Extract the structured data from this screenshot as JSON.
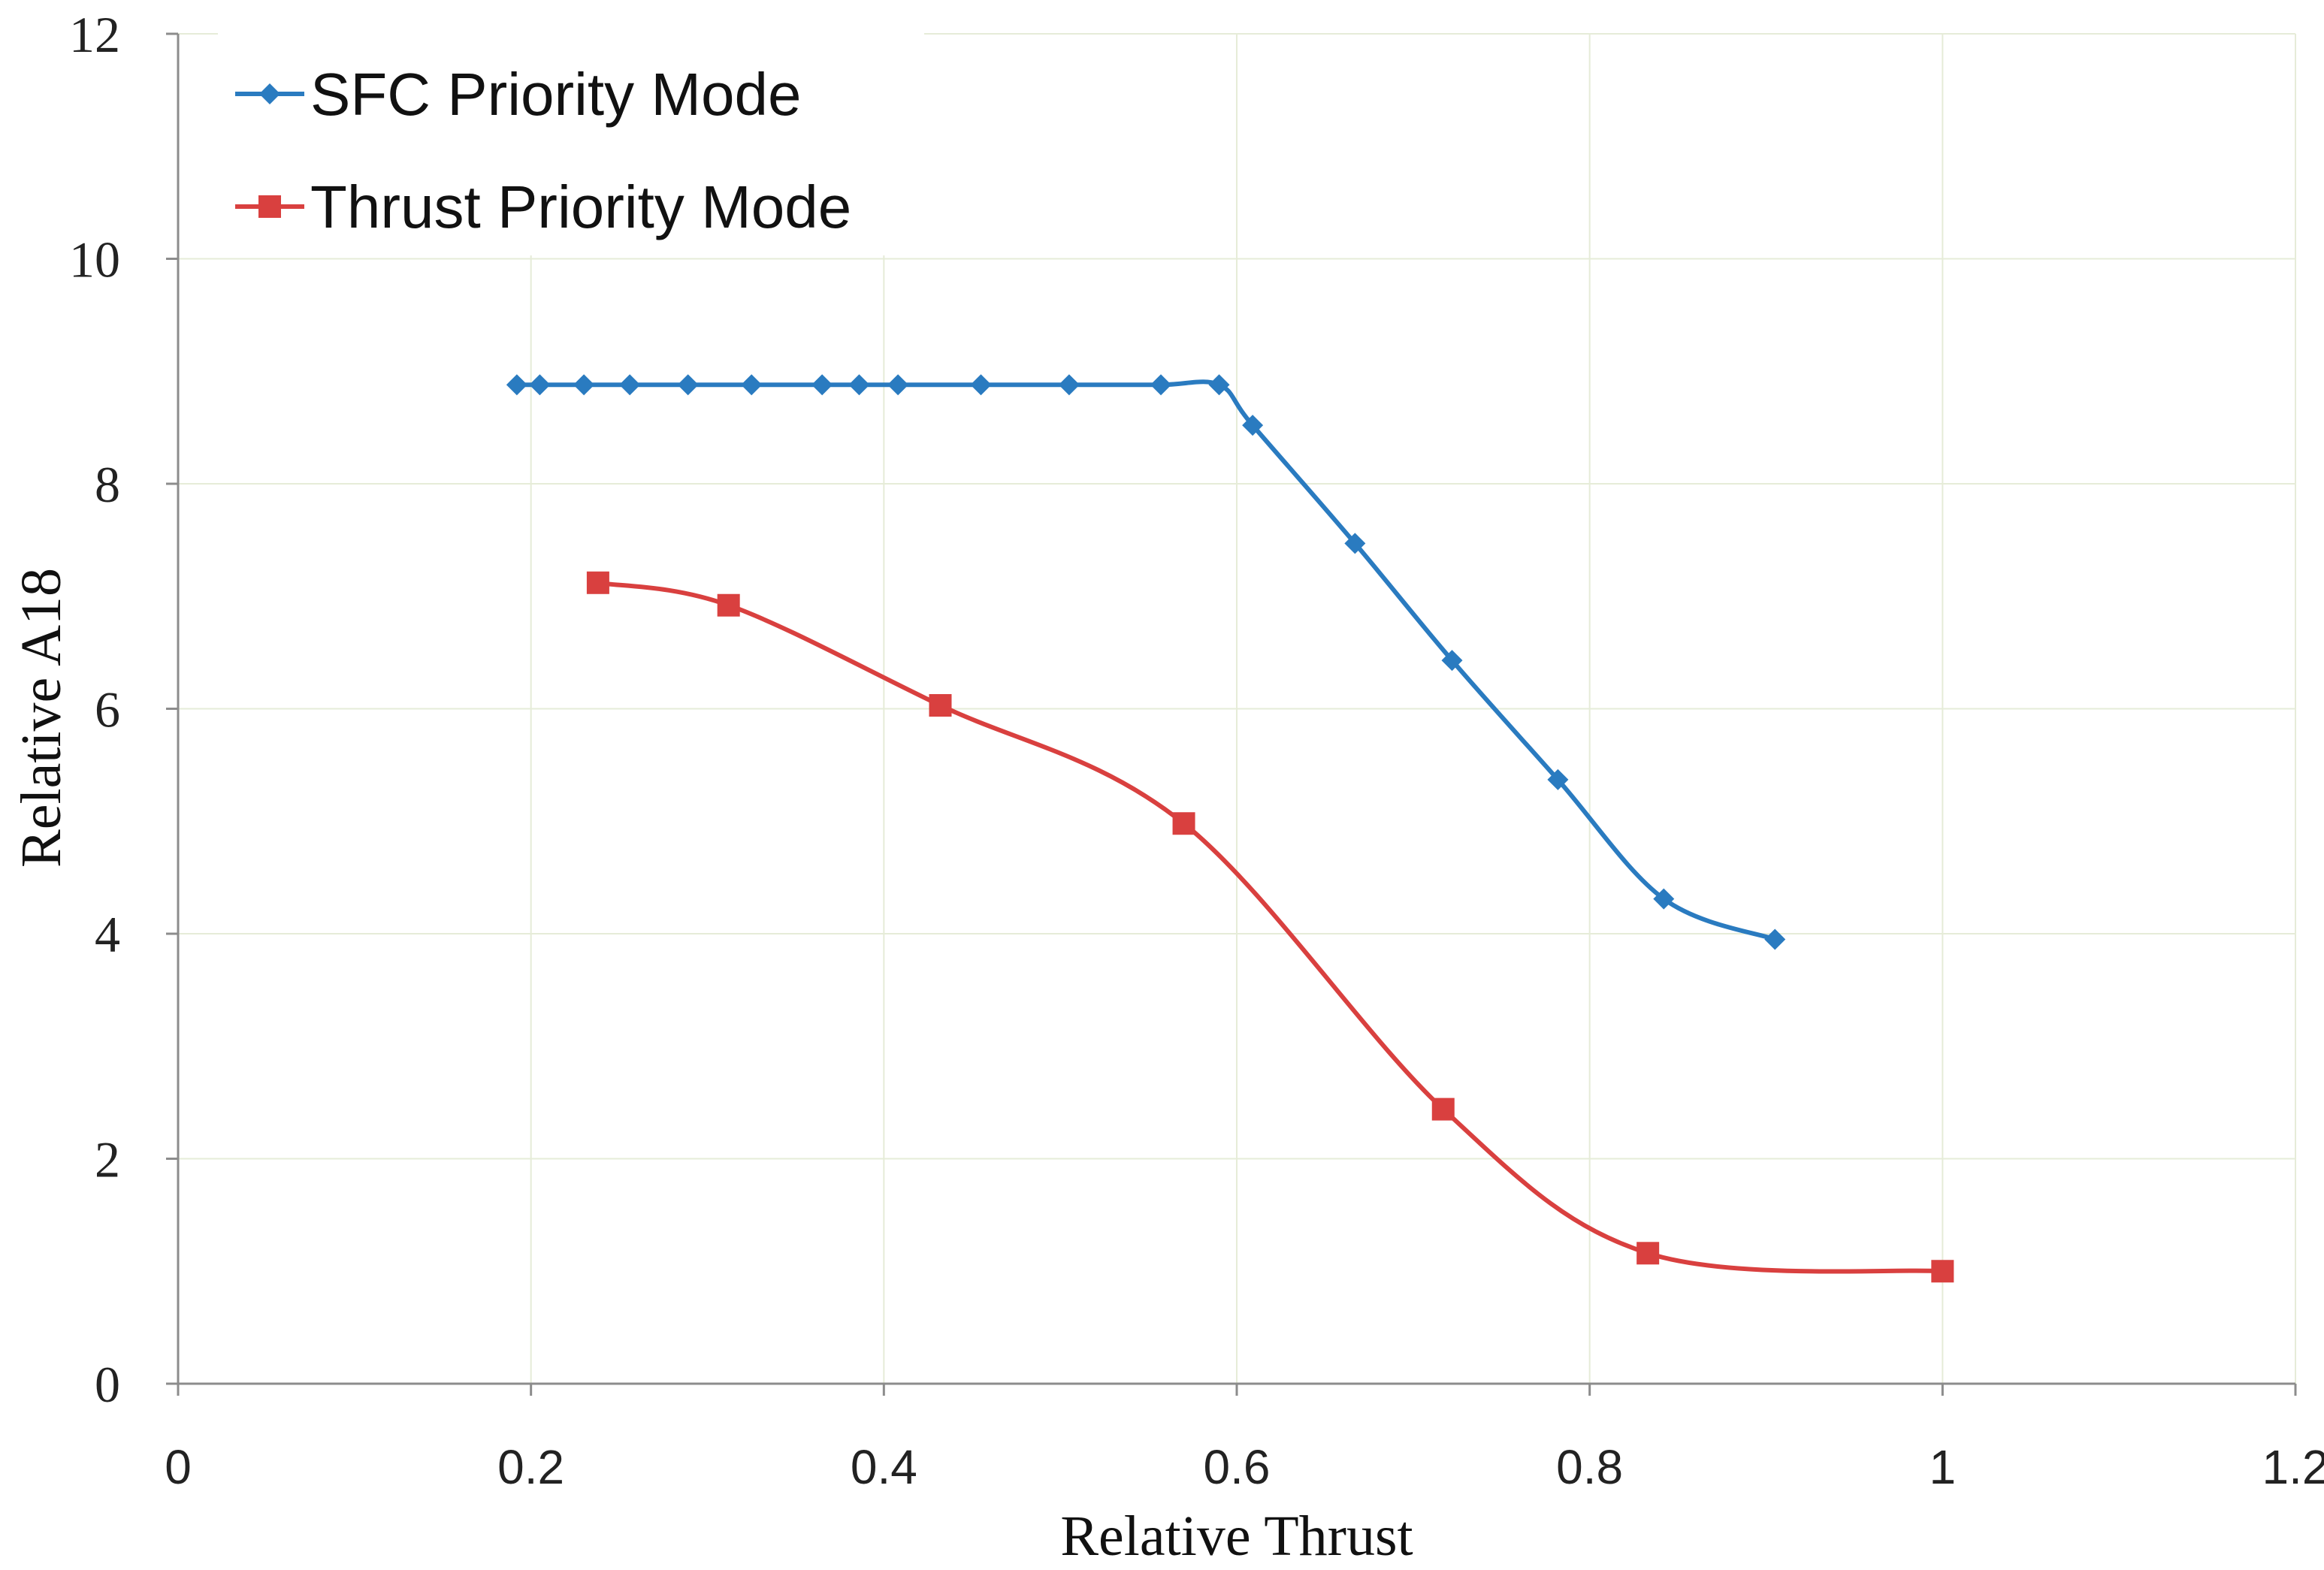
{
  "chart_data": {
    "type": "line",
    "title": "",
    "xlabel": "Relative Thrust",
    "ylabel": "Relative A18",
    "xlim": [
      0,
      1.2
    ],
    "ylim": [
      0,
      12
    ],
    "x_ticks": [
      0,
      0.2,
      0.4,
      0.6,
      0.8,
      1,
      1.2
    ],
    "x_tick_labels": [
      "0",
      "0.2",
      "0.4",
      "0.6",
      "0.8",
      "1",
      "1.2"
    ],
    "y_ticks": [
      0,
      2,
      4,
      6,
      8,
      10,
      12
    ],
    "y_tick_labels": [
      "0",
      "2",
      "4",
      "6",
      "8",
      "10",
      "12"
    ],
    "grid": true,
    "legend_position": "top-left",
    "series": [
      {
        "name": "SFC Priority Mode",
        "color": "#2a7bc0",
        "marker": "diamond",
        "x": [
          0.192,
          0.205,
          0.23,
          0.256,
          0.289,
          0.325,
          0.365,
          0.386,
          0.408,
          0.455,
          0.505,
          0.557,
          0.59,
          0.609,
          0.667,
          0.722,
          0.782,
          0.842,
          0.905
        ],
        "y": [
          8.88,
          8.88,
          8.88,
          8.88,
          8.88,
          8.88,
          8.88,
          8.88,
          8.88,
          8.88,
          8.88,
          8.88,
          8.88,
          8.52,
          7.47,
          6.43,
          5.37,
          4.31,
          3.95
        ]
      },
      {
        "name": "Thrust Priority Mode",
        "color": "#d9403f",
        "marker": "square",
        "x": [
          0.238,
          0.312,
          0.432,
          0.57,
          0.717,
          0.833,
          1.0
        ],
        "y": [
          7.12,
          6.92,
          6.03,
          4.98,
          2.44,
          1.16,
          1.0
        ]
      }
    ]
  }
}
